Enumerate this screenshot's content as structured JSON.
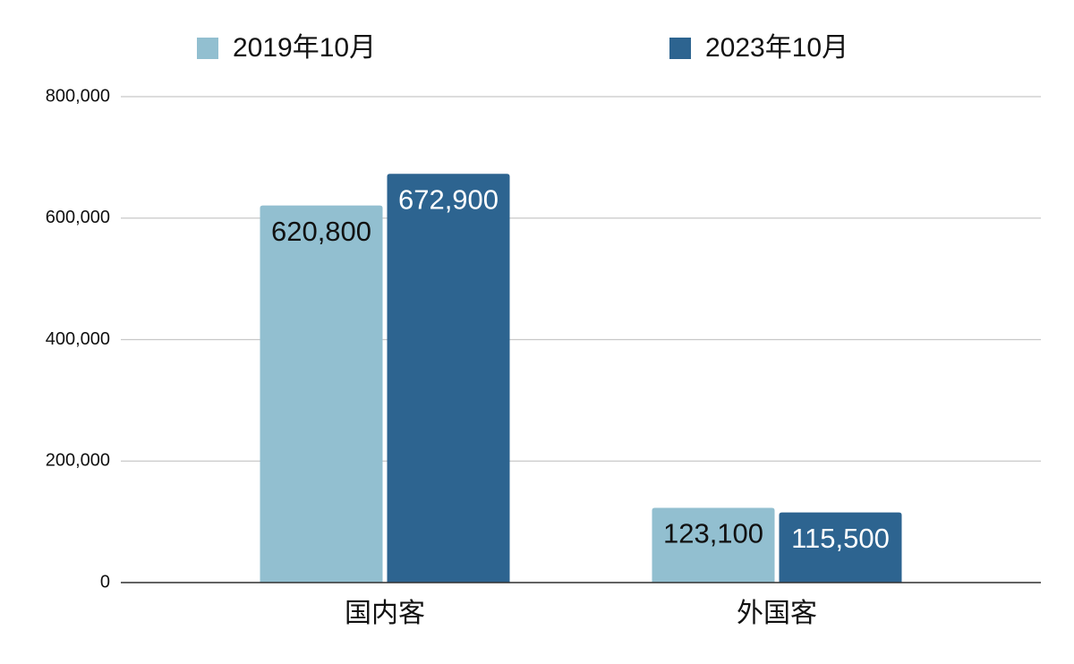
{
  "chart_data": {
    "type": "bar",
    "categories": [
      "国内客",
      "外国客"
    ],
    "series": [
      {
        "name": "2019年10月",
        "color": "#92bfd0",
        "values": [
          620800,
          123100
        ],
        "value_labels": [
          "620,800",
          "123,100"
        ]
      },
      {
        "name": "2023年10月",
        "color": "#2d6490",
        "values": [
          672900,
          115500
        ],
        "value_labels": [
          "672,900",
          "115,500"
        ]
      }
    ],
    "ylim": [
      0,
      800000
    ],
    "yticks": [
      0,
      {
        "value": 200000,
        "label": "200,000"
      },
      {
        "value": 400000,
        "label": "400,000"
      },
      {
        "value": 600000,
        "label": "600,000"
      },
      {
        "value": 800000,
        "label": "800,000"
      }
    ],
    "grid": true,
    "legend": "top"
  }
}
